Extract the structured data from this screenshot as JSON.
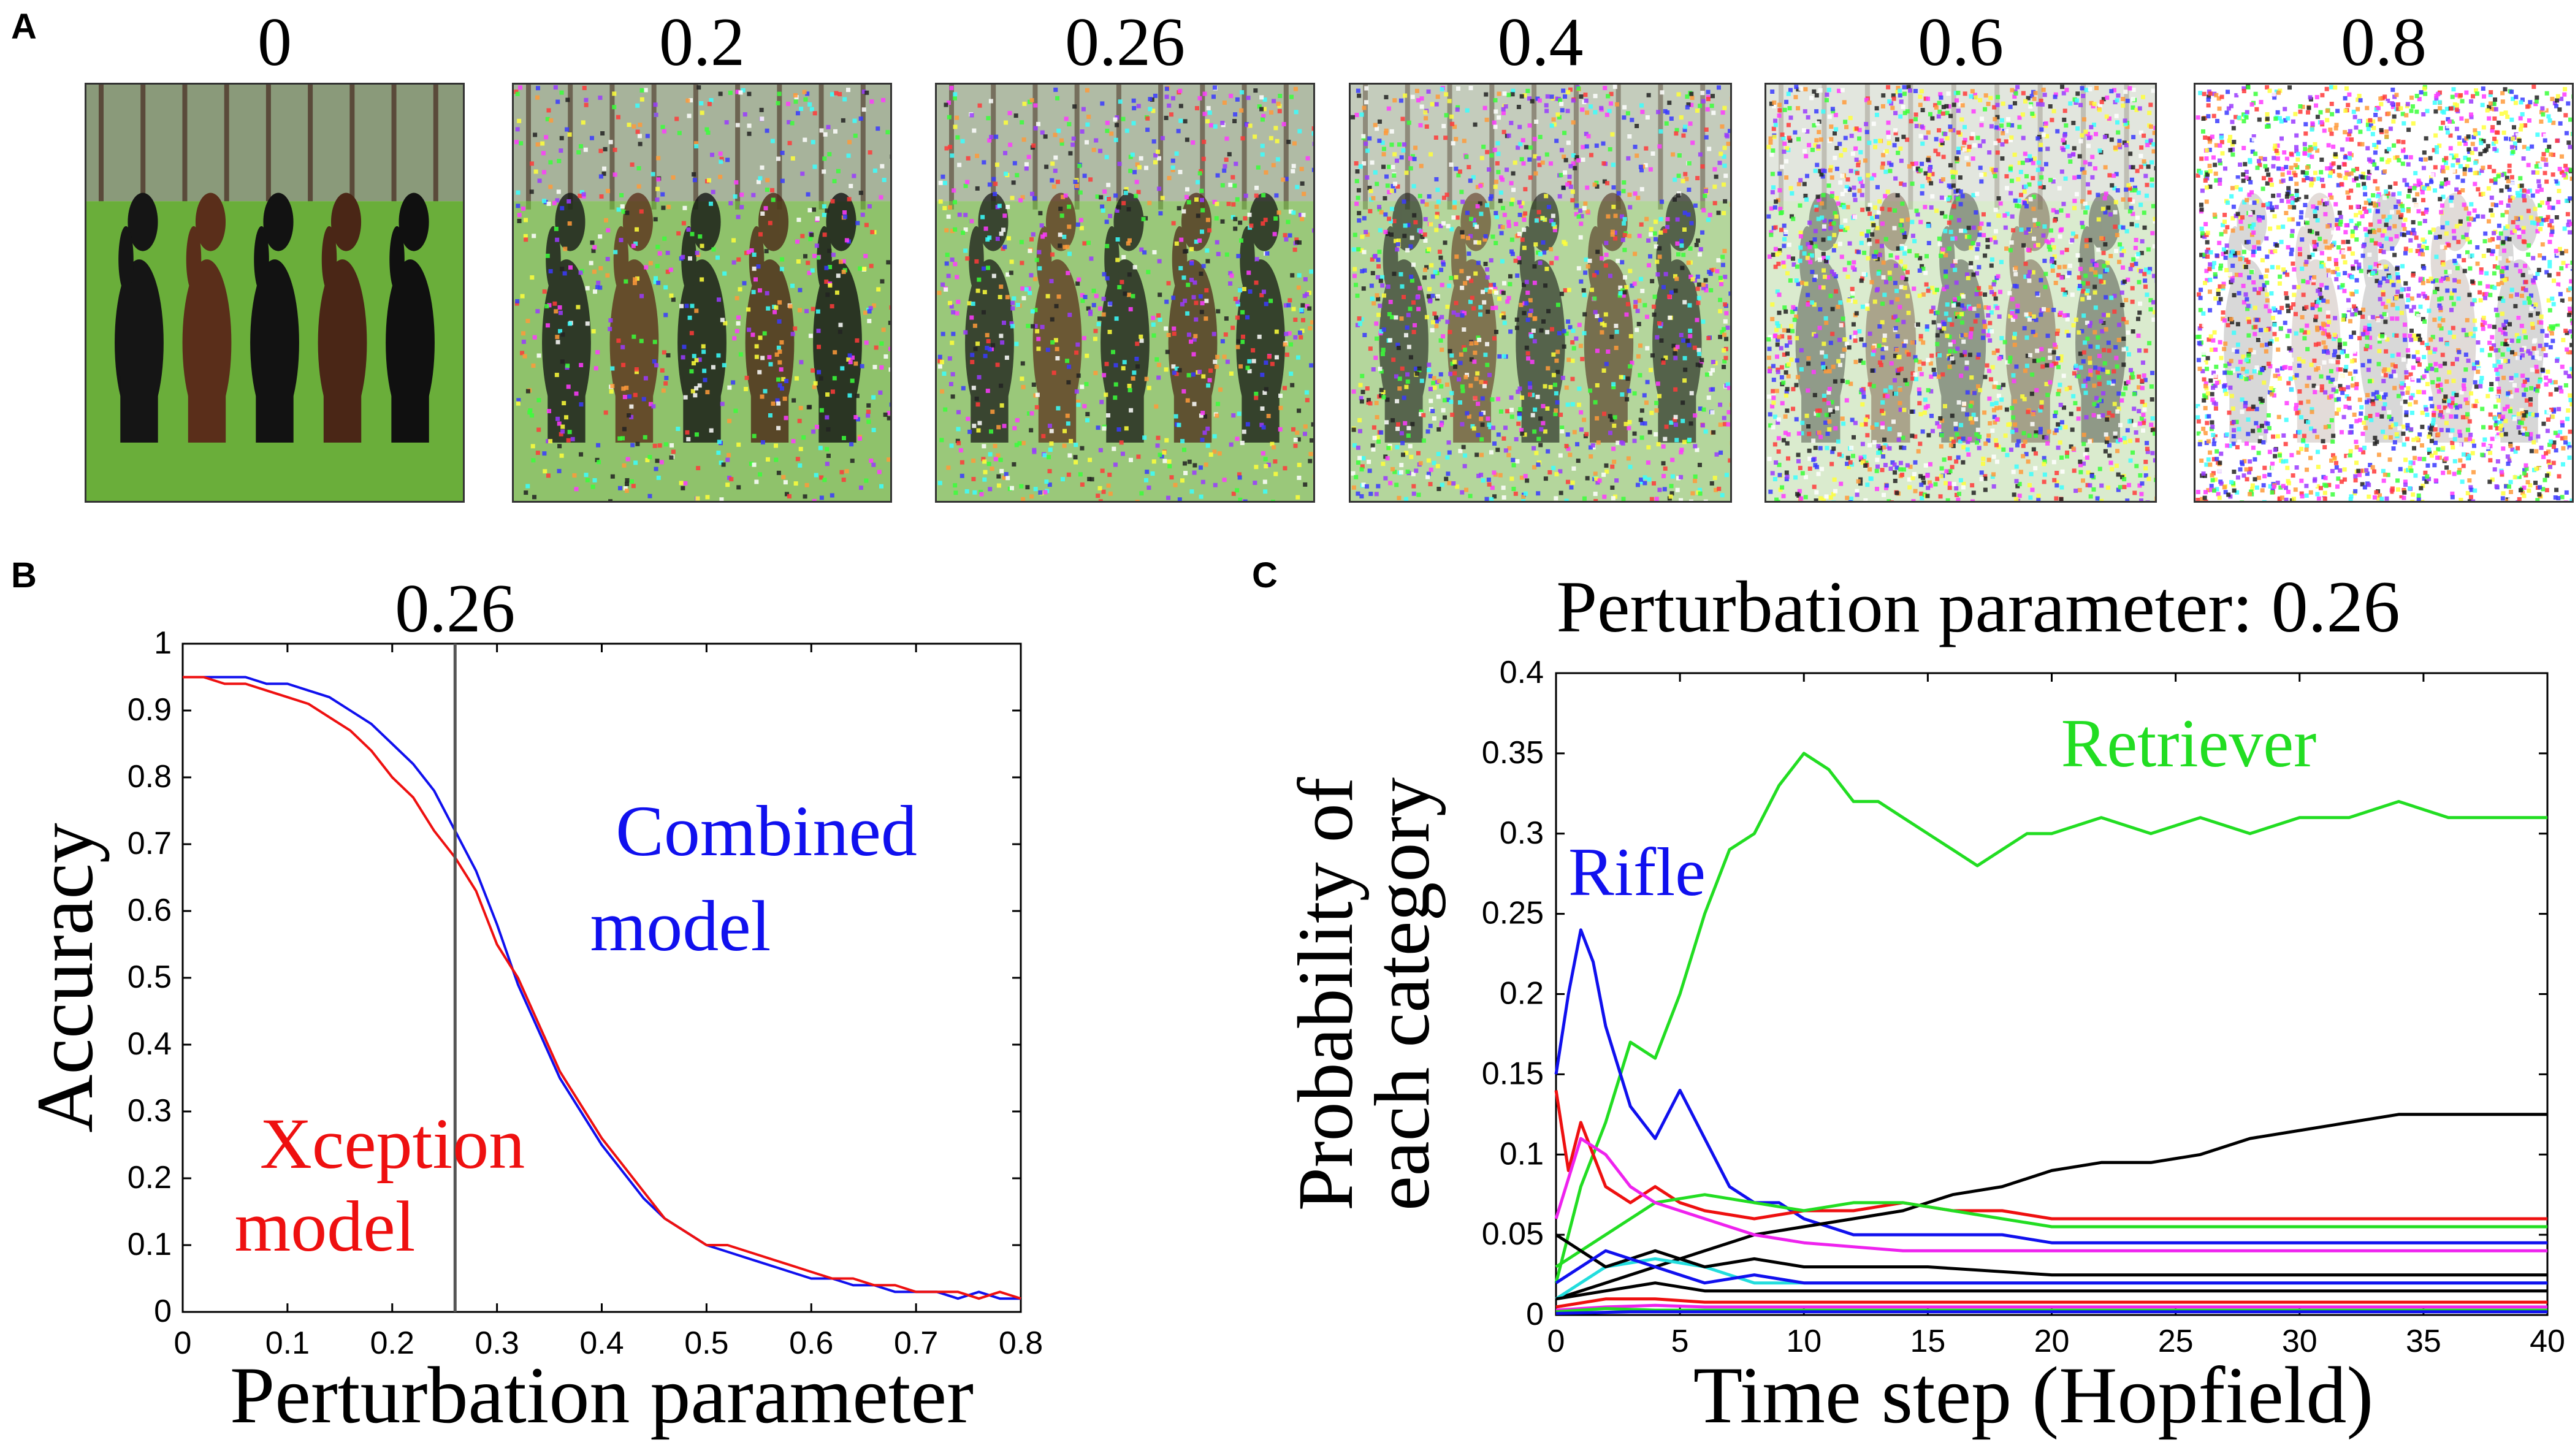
{
  "panels": {
    "a": "A",
    "b": "B",
    "c": "C"
  },
  "thumbnails": {
    "labels": [
      "0",
      "0.2",
      "0.26",
      "0.4",
      "0.6",
      "0.8"
    ],
    "noise_levels": [
      0,
      0.2,
      0.26,
      0.4,
      0.6,
      0.8
    ],
    "subject": "five dogs sitting on grass"
  },
  "colors": {
    "blue": "#1010ee",
    "red": "#ee1010",
    "green": "#22dd22",
    "black": "#000000",
    "magenta": "#ee22ee",
    "cyan": "#22dddd"
  },
  "chart_data": [
    {
      "type": "line",
      "id": "B",
      "title": "0.26",
      "xlabel": "Perturbation parameter",
      "ylabel": "Accuracy",
      "xlim": [
        0,
        0.8
      ],
      "ylim": [
        0,
        1
      ],
      "xticks": [
        "0",
        "0.1",
        "0.2",
        "0.3",
        "0.4",
        "0.5",
        "0.6",
        "0.7",
        "0.8"
      ],
      "yticks": [
        "0",
        "0.1",
        "0.2",
        "0.3",
        "0.4",
        "0.5",
        "0.6",
        "0.7",
        "0.8",
        "0.9",
        "1"
      ],
      "vline": 0.26,
      "series": [
        {
          "name": "Combined model",
          "color": "#1010ee",
          "x": [
            0,
            0.02,
            0.04,
            0.06,
            0.08,
            0.1,
            0.12,
            0.14,
            0.16,
            0.18,
            0.2,
            0.22,
            0.24,
            0.26,
            0.28,
            0.3,
            0.32,
            0.34,
            0.36,
            0.38,
            0.4,
            0.42,
            0.44,
            0.46,
            0.48,
            0.5,
            0.52,
            0.54,
            0.56,
            0.58,
            0.6,
            0.62,
            0.64,
            0.66,
            0.68,
            0.7,
            0.72,
            0.74,
            0.76,
            0.78,
            0.8
          ],
          "y": [
            0.95,
            0.95,
            0.95,
            0.95,
            0.94,
            0.94,
            0.93,
            0.92,
            0.9,
            0.88,
            0.85,
            0.82,
            0.78,
            0.72,
            0.66,
            0.58,
            0.49,
            0.42,
            0.35,
            0.3,
            0.25,
            0.21,
            0.17,
            0.14,
            0.12,
            0.1,
            0.09,
            0.08,
            0.07,
            0.06,
            0.05,
            0.05,
            0.04,
            0.04,
            0.03,
            0.03,
            0.03,
            0.02,
            0.03,
            0.02,
            0.02
          ]
        },
        {
          "name": "Xception model",
          "color": "#ee1010",
          "x": [
            0,
            0.02,
            0.04,
            0.06,
            0.08,
            0.1,
            0.12,
            0.14,
            0.16,
            0.18,
            0.2,
            0.22,
            0.24,
            0.26,
            0.28,
            0.3,
            0.32,
            0.34,
            0.36,
            0.38,
            0.4,
            0.42,
            0.44,
            0.46,
            0.48,
            0.5,
            0.52,
            0.54,
            0.56,
            0.58,
            0.6,
            0.62,
            0.64,
            0.66,
            0.68,
            0.7,
            0.72,
            0.74,
            0.76,
            0.78,
            0.8
          ],
          "y": [
            0.95,
            0.95,
            0.94,
            0.94,
            0.93,
            0.92,
            0.91,
            0.89,
            0.87,
            0.84,
            0.8,
            0.77,
            0.72,
            0.68,
            0.63,
            0.55,
            0.5,
            0.43,
            0.36,
            0.31,
            0.26,
            0.22,
            0.18,
            0.14,
            0.12,
            0.1,
            0.1,
            0.09,
            0.08,
            0.07,
            0.06,
            0.05,
            0.05,
            0.04,
            0.04,
            0.03,
            0.03,
            0.03,
            0.02,
            0.03,
            0.02
          ]
        }
      ],
      "annotations": [
        {
          "lines": [
            "Combined",
            "model"
          ],
          "color": "#1010ee"
        },
        {
          "lines": [
            "Xception",
            "model"
          ],
          "color": "#ee1010"
        }
      ]
    },
    {
      "type": "line",
      "id": "C",
      "title": "Perturbation parameter: 0.26",
      "xlabel": "Time step (Hopfield)",
      "ylabel": [
        "Probability of",
        "each category"
      ],
      "xlim": [
        0,
        40
      ],
      "ylim": [
        0,
        0.4
      ],
      "xticks": [
        "0",
        "5",
        "10",
        "15",
        "20",
        "25",
        "30",
        "35",
        "40"
      ],
      "yticks": [
        "0",
        "0.05",
        "0.1",
        "0.15",
        "0.2",
        "0.25",
        "0.3",
        "0.35",
        "0.4"
      ],
      "series": [
        {
          "name": "Retriever",
          "color": "#22dd22",
          "x": [
            0,
            1,
            2,
            3,
            4,
            5,
            6,
            7,
            8,
            9,
            10,
            11,
            12,
            13,
            14,
            15,
            16,
            17,
            18,
            19,
            20,
            22,
            24,
            26,
            28,
            30,
            32,
            34,
            36,
            38,
            40
          ],
          "y": [
            0.02,
            0.08,
            0.12,
            0.17,
            0.16,
            0.2,
            0.25,
            0.29,
            0.3,
            0.33,
            0.35,
            0.34,
            0.32,
            0.32,
            0.31,
            0.3,
            0.29,
            0.28,
            0.29,
            0.3,
            0.3,
            0.31,
            0.3,
            0.31,
            0.3,
            0.31,
            0.31,
            0.32,
            0.31,
            0.31,
            0.31
          ]
        },
        {
          "name": "Rifle",
          "color": "#1010ee",
          "x": [
            0,
            0.5,
            1,
            1.5,
            2,
            3,
            4,
            5,
            6,
            7,
            8,
            9,
            10,
            12,
            14,
            16,
            18,
            20,
            25,
            30,
            35,
            40
          ],
          "y": [
            0.15,
            0.2,
            0.24,
            0.22,
            0.18,
            0.13,
            0.11,
            0.14,
            0.11,
            0.08,
            0.07,
            0.07,
            0.06,
            0.05,
            0.05,
            0.05,
            0.05,
            0.045,
            0.045,
            0.045,
            0.045,
            0.045
          ]
        },
        {
          "name": "",
          "color": "#000000",
          "x": [
            0,
            2,
            4,
            6,
            8,
            10,
            12,
            14,
            16,
            18,
            20,
            22,
            24,
            26,
            28,
            30,
            32,
            34,
            36,
            38,
            40
          ],
          "y": [
            0.01,
            0.02,
            0.03,
            0.04,
            0.05,
            0.055,
            0.06,
            0.065,
            0.075,
            0.08,
            0.09,
            0.095,
            0.095,
            0.1,
            0.11,
            0.115,
            0.12,
            0.125,
            0.125,
            0.125,
            0.125
          ]
        },
        {
          "name": "",
          "color": "#ee1010",
          "x": [
            0,
            0.5,
            1,
            1.5,
            2,
            3,
            4,
            5,
            6,
            8,
            10,
            12,
            14,
            16,
            18,
            20,
            25,
            30,
            35,
            40
          ],
          "y": [
            0.14,
            0.09,
            0.12,
            0.1,
            0.08,
            0.07,
            0.08,
            0.07,
            0.065,
            0.06,
            0.065,
            0.065,
            0.07,
            0.065,
            0.065,
            0.06,
            0.06,
            0.06,
            0.06,
            0.06
          ]
        },
        {
          "name": "",
          "color": "#22dd22",
          "x": [
            0,
            2,
            4,
            6,
            8,
            10,
            12,
            14,
            16,
            18,
            20,
            25,
            30,
            35,
            40
          ],
          "y": [
            0.03,
            0.05,
            0.07,
            0.075,
            0.07,
            0.065,
            0.07,
            0.07,
            0.065,
            0.06,
            0.055,
            0.055,
            0.055,
            0.055,
            0.055
          ]
        },
        {
          "name": "",
          "color": "#ee22ee",
          "x": [
            0,
            1,
            2,
            3,
            4,
            6,
            8,
            10,
            14,
            20,
            25,
            30,
            35,
            40
          ],
          "y": [
            0.06,
            0.11,
            0.1,
            0.08,
            0.07,
            0.06,
            0.05,
            0.045,
            0.04,
            0.04,
            0.04,
            0.04,
            0.04,
            0.04
          ]
        },
        {
          "name": "",
          "color": "#22dddd",
          "x": [
            0,
            2,
            4,
            6,
            8,
            10,
            15,
            20,
            30,
            40
          ],
          "y": [
            0.01,
            0.03,
            0.035,
            0.03,
            0.02,
            0.02,
            0.02,
            0.02,
            0.02,
            0.02
          ]
        },
        {
          "name": "",
          "color": "#000000",
          "x": [
            0,
            2,
            4,
            6,
            8,
            10,
            15,
            20,
            30,
            40
          ],
          "y": [
            0.05,
            0.03,
            0.04,
            0.03,
            0.035,
            0.03,
            0.03,
            0.025,
            0.025,
            0.025
          ]
        },
        {
          "name": "",
          "color": "#1010ee",
          "x": [
            0,
            2,
            4,
            6,
            8,
            10,
            15,
            20,
            30,
            40
          ],
          "y": [
            0.02,
            0.04,
            0.03,
            0.02,
            0.025,
            0.02,
            0.02,
            0.02,
            0.02,
            0.02
          ]
        },
        {
          "name": "",
          "color": "#000000",
          "x": [
            0,
            2,
            4,
            6,
            8,
            10,
            15,
            20,
            30,
            40
          ],
          "y": [
            0.01,
            0.015,
            0.02,
            0.015,
            0.015,
            0.015,
            0.015,
            0.015,
            0.015,
            0.015
          ]
        },
        {
          "name": "",
          "color": "#ee1010",
          "x": [
            0,
            2,
            4,
            6,
            8,
            10,
            20,
            40
          ],
          "y": [
            0.005,
            0.01,
            0.01,
            0.008,
            0.008,
            0.008,
            0.008,
            0.008
          ]
        },
        {
          "name": "",
          "color": "#ee22ee",
          "x": [
            0,
            2,
            4,
            6,
            10,
            20,
            40
          ],
          "y": [
            0.003,
            0.005,
            0.006,
            0.005,
            0.005,
            0.005,
            0.005
          ]
        },
        {
          "name": "",
          "color": "#22dd22",
          "x": [
            0,
            2,
            4,
            10,
            20,
            40
          ],
          "y": [
            0.002,
            0.004,
            0.003,
            0.003,
            0.003,
            0.003
          ]
        },
        {
          "name": "",
          "color": "#1010ee",
          "x": [
            0,
            3,
            6,
            10,
            20,
            40
          ],
          "y": [
            0.001,
            0.002,
            0.002,
            0.002,
            0.002,
            0.002
          ]
        }
      ],
      "annotations": [
        {
          "lines": [
            "Retriever"
          ],
          "color": "#22dd22"
        },
        {
          "lines": [
            "Rifle"
          ],
          "color": "#1010ee"
        }
      ]
    }
  ]
}
